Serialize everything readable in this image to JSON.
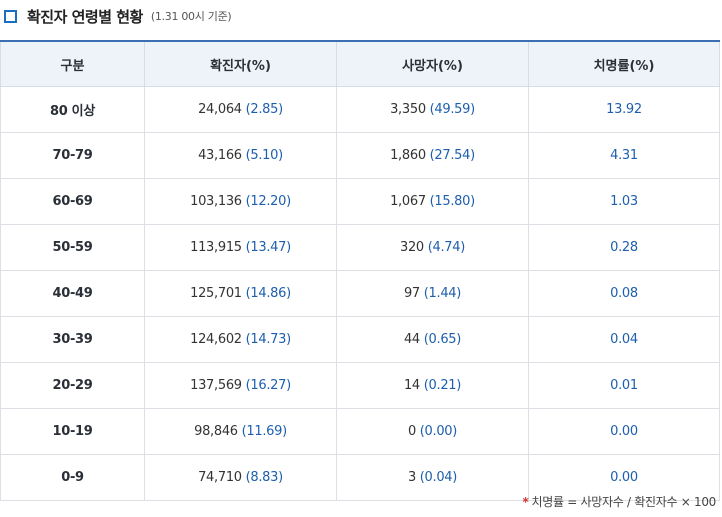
{
  "heading": {
    "title": "확진자 연령별 현황",
    "note": "(1.31 00시 기준)"
  },
  "table": {
    "headers": [
      "구분",
      "확진자(%)",
      "사망자(%)",
      "치명률(%)"
    ],
    "rows": [
      {
        "age": "80 이상",
        "confirmed": "24,064",
        "confirmed_pct": "(2.85)",
        "deaths": "3,350",
        "deaths_pct": "(49.59)",
        "fatality": "13.92"
      },
      {
        "age": "70-79",
        "confirmed": "43,166",
        "confirmed_pct": "(5.10)",
        "deaths": "1,860",
        "deaths_pct": "(27.54)",
        "fatality": "4.31"
      },
      {
        "age": "60-69",
        "confirmed": "103,136",
        "confirmed_pct": "(12.20)",
        "deaths": "1,067",
        "deaths_pct": "(15.80)",
        "fatality": "1.03"
      },
      {
        "age": "50-59",
        "confirmed": "113,915",
        "confirmed_pct": "(13.47)",
        "deaths": "320",
        "deaths_pct": "(4.74)",
        "fatality": "0.28"
      },
      {
        "age": "40-49",
        "confirmed": "125,701",
        "confirmed_pct": "(14.86)",
        "deaths": "97",
        "deaths_pct": "(1.44)",
        "fatality": "0.08"
      },
      {
        "age": "30-39",
        "confirmed": "124,602",
        "confirmed_pct": "(14.73)",
        "deaths": "44",
        "deaths_pct": "(0.65)",
        "fatality": "0.04"
      },
      {
        "age": "20-29",
        "confirmed": "137,569",
        "confirmed_pct": "(16.27)",
        "deaths": "14",
        "deaths_pct": "(0.21)",
        "fatality": "0.01"
      },
      {
        "age": "10-19",
        "confirmed": "98,846",
        "confirmed_pct": "(11.69)",
        "deaths": "0",
        "deaths_pct": "(0.00)",
        "fatality": "0.00"
      },
      {
        "age": "0-9",
        "confirmed": "74,710",
        "confirmed_pct": "(8.83)",
        "deaths": "3",
        "deaths_pct": "(0.04)",
        "fatality": "0.00"
      }
    ]
  },
  "footnote": {
    "marker": "*",
    "text": "치명률 = 사망자수 / 확진자수 × 100"
  },
  "colors": {
    "accent": "#1a6fc4",
    "header_bg": "#eef3fa",
    "value_blue": "#1d5fae",
    "star_red": "#d0312d"
  }
}
